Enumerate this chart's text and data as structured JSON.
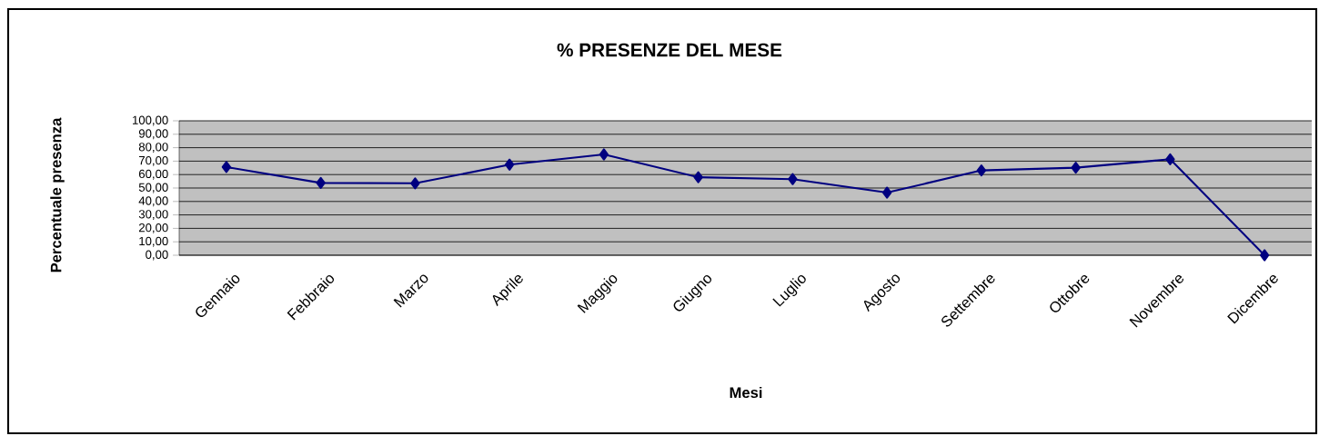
{
  "chart_data": {
    "type": "line",
    "title": "% PRESENZE DEL MESE",
    "xlabel": "Mesi",
    "ylabel": "Percentuale presenza",
    "categories": [
      "Gennaio",
      "Febbraio",
      "Marzo",
      "Aprile",
      "Maggio",
      "Giugno",
      "Luglio",
      "Agosto",
      "Settembre",
      "Ottobre",
      "Novembre",
      "Dicembre"
    ],
    "series": [
      {
        "color": "#000080",
        "values": [
          65.6,
          53.8,
          53.5,
          67.4,
          75.0,
          58.0,
          56.6,
          46.6,
          63.1,
          65.1,
          71.4,
          0.0
        ]
      }
    ],
    "ylim": [
      0,
      100
    ],
    "yticks": [
      {
        "value": 0,
        "label": "0,00"
      },
      {
        "value": 10,
        "label": "10,00"
      },
      {
        "value": 20,
        "label": "20,00"
      },
      {
        "value": 30,
        "label": "30,00"
      },
      {
        "value": 40,
        "label": "40,00"
      },
      {
        "value": 50,
        "label": "50,00"
      },
      {
        "value": 60,
        "label": "60,00"
      },
      {
        "value": 70,
        "label": "70,00"
      },
      {
        "value": 80,
        "label": "80,00"
      },
      {
        "value": 90,
        "label": "90,00"
      },
      {
        "value": 100,
        "label": "100,00"
      }
    ],
    "grid": "y",
    "marker": "diamond",
    "line_style": "solid"
  }
}
